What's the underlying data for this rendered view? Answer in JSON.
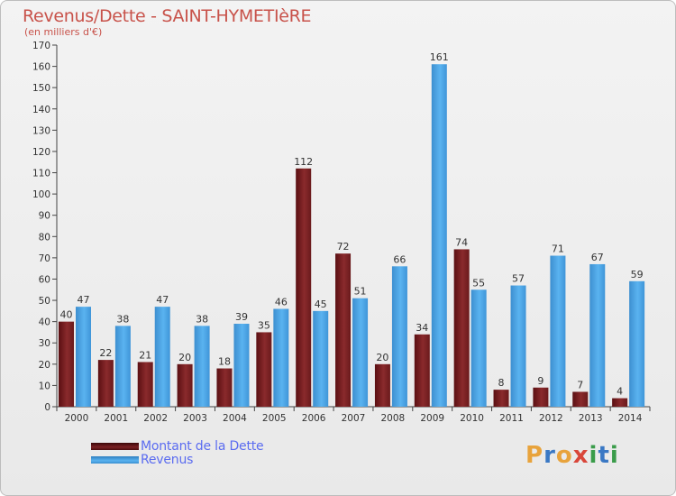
{
  "header": {
    "title": "Revenus/Dette - SAINT-HYMETIèRE",
    "subtitle": "(en milliers d'€)"
  },
  "legend": {
    "debt_label": "Montant de la Dette",
    "revenue_label": "Revenus"
  },
  "brand": {
    "name": "Proxiti",
    "letters": [
      "P",
      "r",
      "o",
      "x",
      "i",
      "t",
      "i"
    ],
    "colors": [
      "#e8a33c",
      "#3a78c4",
      "#e8a33c",
      "#d9463a",
      "#3a9c4a",
      "#3a78c4",
      "#3a9c4a"
    ]
  },
  "colors": {
    "debt": "#7a2023",
    "revenue": "#4aa3e6"
  },
  "chart_data": {
    "type": "bar",
    "title": "Revenus/Dette - SAINT-HYMETIèRE",
    "ylabel": "(en milliers d'€)",
    "xlabel": "",
    "ylim": [
      0,
      170
    ],
    "ytick_step": 10,
    "grid": false,
    "legend_position": "bottom-left",
    "categories": [
      "2000",
      "2001",
      "2002",
      "2003",
      "2004",
      "2005",
      "2006",
      "2007",
      "2008",
      "2009",
      "2010",
      "2011",
      "2012",
      "2013",
      "2014"
    ],
    "series": [
      {
        "name": "Montant de la Dette",
        "values": [
          40,
          22,
          21,
          20,
          18,
          35,
          112,
          72,
          20,
          34,
          74,
          8,
          9,
          7,
          4
        ]
      },
      {
        "name": "Revenus",
        "values": [
          47,
          38,
          47,
          38,
          39,
          46,
          45,
          51,
          66,
          161,
          55,
          57,
          71,
          67,
          59
        ]
      }
    ]
  }
}
